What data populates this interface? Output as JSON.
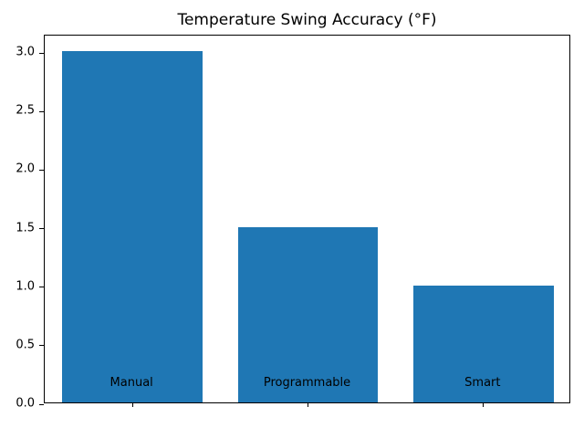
{
  "chart_data": {
    "type": "bar",
    "title": "Temperature Swing Accuracy (°F)",
    "categories": [
      "Manual",
      "Programmable",
      "Smart"
    ],
    "values": [
      3.0,
      1.5,
      1.0
    ],
    "xlabel": "",
    "ylabel": "",
    "ylim": [
      0,
      3.15
    ],
    "yticks": [
      0.0,
      0.5,
      1.0,
      1.5,
      2.0,
      2.5,
      3.0
    ],
    "ytick_labels": [
      "0.0",
      "0.5",
      "1.0",
      "1.5",
      "2.0",
      "2.5",
      "3.0"
    ],
    "bar_color": "#1f77b4",
    "bar_width_fraction": 0.8,
    "grid": false,
    "legend": null,
    "spine_color": "#000000",
    "background_color": "#ffffff"
  }
}
